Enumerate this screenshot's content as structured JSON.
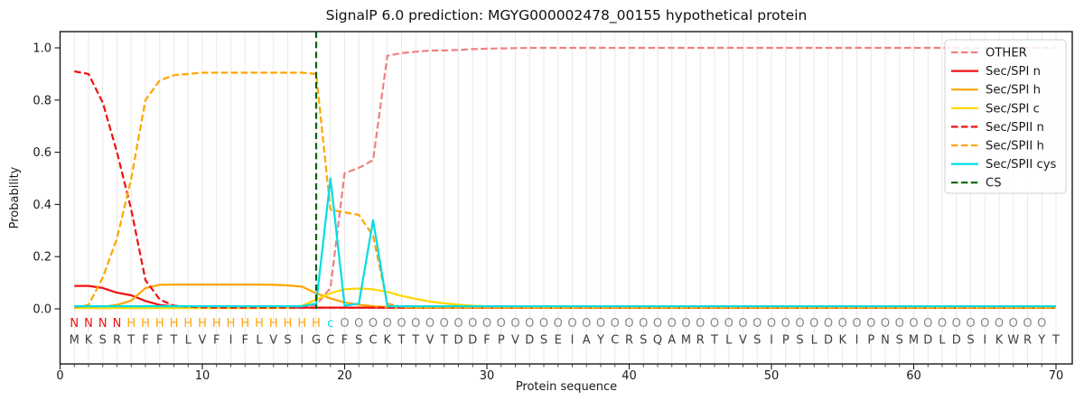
{
  "title": "SignalP 6.0 prediction: MGYG000002478_00155 hypothetical protein",
  "axes": {
    "xlabel": "Protein sequence",
    "ylabel": "Probability",
    "xticks": [
      0,
      10,
      20,
      30,
      40,
      50,
      60,
      70
    ],
    "ytick_labels": [
      "0.0",
      "0.2",
      "0.4",
      "0.6",
      "0.8",
      "1.0"
    ],
    "ytick_values": [
      0.0,
      0.2,
      0.4,
      0.6,
      0.8,
      1.0
    ]
  },
  "legend": {
    "entries": [
      "OTHER",
      "Sec/SPI n",
      "Sec/SPI h",
      "Sec/SPI c",
      "Sec/SPII n",
      "Sec/SPII h",
      "Sec/SPII cys",
      "CS"
    ],
    "position": "upper right"
  },
  "chart_data": {
    "type": "line",
    "x_start": 1,
    "x_end": 70,
    "xlim": [
      0,
      71.2
    ],
    "ylim": [
      -0.21,
      1.06
    ],
    "grid": "vertical gridline at every residue position",
    "sequence": "MKSRTFFTLVFIFLVSIGCFSCKTTVTDDFPVDSEIAYCRSQAMRTLVSIPSLDKIPNSMDLDSIKWRYT",
    "region_labels": "NNNNHHHHHHHHHHHHHHcOOOOOOOOOOOOOOOOOOOOOOOOOOOOOOOOOOOOOOOOOOOOOOOOOO",
    "region_colors": {
      "N": "#ee1111",
      "H": "#ffa500",
      "c": "#00dde5",
      "O": "#888888"
    },
    "sequence_letter_color": "#3d3d3d",
    "gridline_color": "#e9e9e9",
    "frame_color": "#1a1a1a",
    "series": [
      {
        "name": "OTHER",
        "color": "#f08080",
        "dashed": true,
        "values": [
          0.01,
          0.01,
          0.01,
          0.01,
          0.01,
          0.01,
          0.01,
          0.01,
          0.01,
          0.01,
          0.01,
          0.01,
          0.01,
          0.01,
          0.01,
          0.01,
          0.01,
          0.015,
          0.08,
          0.52,
          0.54,
          0.57,
          0.97,
          0.98,
          0.985,
          0.99,
          0.99,
          0.992,
          0.995,
          0.997,
          0.998,
          0.999,
          1.0,
          1.0,
          1.0,
          1.0,
          1.0,
          1.0,
          1.0,
          1.0,
          1.0,
          1.0,
          1.0,
          1.0,
          1.0,
          1.0,
          1.0,
          1.0,
          1.0,
          1.0,
          1.0,
          1.0,
          1.0,
          1.0,
          1.0,
          1.0,
          1.0,
          1.0,
          1.0,
          1.0,
          1.0,
          1.0,
          1.0,
          1.0,
          1.0,
          1.0,
          1.0,
          1.0,
          1.0,
          1.0
        ]
      },
      {
        "name": "Sec/SPI n",
        "color": "#ee1111",
        "dashed": false,
        "values": [
          0.088,
          0.088,
          0.08,
          0.062,
          0.052,
          0.03,
          0.015,
          0.009,
          0.007,
          0.006,
          0.005,
          0.005,
          0.005,
          0.005,
          0.005,
          0.005,
          0.005,
          0.005,
          0.005,
          0.005,
          0.005,
          0.005,
          0.005,
          0.005,
          0.005,
          0.005,
          0.005,
          0.005,
          0.005,
          0.005,
          0.005,
          0.005,
          0.005,
          0.005,
          0.005,
          0.005,
          0.005,
          0.005,
          0.005,
          0.005,
          0.005,
          0.005,
          0.005,
          0.005,
          0.005,
          0.005,
          0.005,
          0.005,
          0.005,
          0.005,
          0.005,
          0.005,
          0.005,
          0.005,
          0.005,
          0.005,
          0.005,
          0.005,
          0.005,
          0.005,
          0.005,
          0.005,
          0.005,
          0.005,
          0.005,
          0.005,
          0.005,
          0.005,
          0.005,
          0.005
        ]
      },
      {
        "name": "Sec/SPI h",
        "color": "#ffa500",
        "dashed": false,
        "values": [
          0.004,
          0.005,
          0.008,
          0.015,
          0.032,
          0.08,
          0.092,
          0.093,
          0.093,
          0.093,
          0.093,
          0.093,
          0.093,
          0.093,
          0.092,
          0.09,
          0.085,
          0.06,
          0.04,
          0.025,
          0.016,
          0.01,
          0.007,
          0.005,
          0.004,
          0.004,
          0.004,
          0.004,
          0.004,
          0.004,
          0.004,
          0.004,
          0.004,
          0.004,
          0.004,
          0.004,
          0.004,
          0.004,
          0.004,
          0.004,
          0.004,
          0.004,
          0.004,
          0.004,
          0.004,
          0.004,
          0.004,
          0.004,
          0.004,
          0.004,
          0.004,
          0.004,
          0.004,
          0.004,
          0.004,
          0.004,
          0.004,
          0.004,
          0.004,
          0.004,
          0.004,
          0.004,
          0.004,
          0.004,
          0.004,
          0.004,
          0.004,
          0.004,
          0.004,
          0.004
        ]
      },
      {
        "name": "Sec/SPI c",
        "color": "#ffd700",
        "dashed": false,
        "values": [
          0.003,
          0.003,
          0.003,
          0.003,
          0.003,
          0.003,
          0.003,
          0.003,
          0.003,
          0.003,
          0.003,
          0.003,
          0.003,
          0.003,
          0.003,
          0.005,
          0.012,
          0.035,
          0.06,
          0.075,
          0.078,
          0.075,
          0.065,
          0.05,
          0.038,
          0.028,
          0.021,
          0.016,
          0.012,
          0.01,
          0.009,
          0.008,
          0.007,
          0.007,
          0.006,
          0.005,
          0.005,
          0.005,
          0.005,
          0.005,
          0.005,
          0.005,
          0.005,
          0.005,
          0.005,
          0.005,
          0.005,
          0.005,
          0.005,
          0.005,
          0.005,
          0.005,
          0.005,
          0.005,
          0.005,
          0.005,
          0.005,
          0.005,
          0.005,
          0.005,
          0.005,
          0.005,
          0.005,
          0.005,
          0.005,
          0.005,
          0.005,
          0.005,
          0.005,
          0.005
        ]
      },
      {
        "name": "Sec/SPII n",
        "color": "#ee1111",
        "dashed": true,
        "values": [
          0.91,
          0.9,
          0.79,
          0.6,
          0.38,
          0.11,
          0.036,
          0.012,
          0.008,
          0.006,
          0.005,
          0.005,
          0.005,
          0.005,
          0.005,
          0.005,
          0.005,
          0.005,
          0.005,
          0.005,
          0.005,
          0.005,
          0.005,
          0.005,
          0.005,
          0.005,
          0.005,
          0.005,
          0.005,
          0.005,
          0.005,
          0.005,
          0.005,
          0.005,
          0.005,
          0.005,
          0.005,
          0.005,
          0.005,
          0.005,
          0.005,
          0.005,
          0.005,
          0.005,
          0.005,
          0.005,
          0.005,
          0.005,
          0.005,
          0.005,
          0.005,
          0.005,
          0.005,
          0.005,
          0.005,
          0.005,
          0.005,
          0.005,
          0.005,
          0.005,
          0.005,
          0.005,
          0.005,
          0.005,
          0.005,
          0.005,
          0.005,
          0.005,
          0.005,
          0.005
        ]
      },
      {
        "name": "Sec/SPII h",
        "color": "#ffa500",
        "dashed": true,
        "values": [
          0.004,
          0.015,
          0.12,
          0.27,
          0.5,
          0.8,
          0.875,
          0.895,
          0.9,
          0.905,
          0.905,
          0.905,
          0.905,
          0.905,
          0.905,
          0.905,
          0.905,
          0.9,
          0.38,
          0.37,
          0.36,
          0.28,
          0.02,
          0.008,
          0.005,
          0.005,
          0.005,
          0.005,
          0.005,
          0.005,
          0.005,
          0.005,
          0.005,
          0.005,
          0.005,
          0.005,
          0.005,
          0.005,
          0.005,
          0.005,
          0.005,
          0.005,
          0.005,
          0.005,
          0.005,
          0.005,
          0.005,
          0.005,
          0.005,
          0.005,
          0.005,
          0.005,
          0.005,
          0.005,
          0.005,
          0.005,
          0.005,
          0.005,
          0.005,
          0.005,
          0.005,
          0.005,
          0.005,
          0.005,
          0.005,
          0.005,
          0.005,
          0.005,
          0.005,
          0.005
        ]
      },
      {
        "name": "Sec/SPII cys",
        "color": "#00dde5",
        "dashed": false,
        "values": [
          0.01,
          0.01,
          0.01,
          0.01,
          0.01,
          0.01,
          0.01,
          0.01,
          0.01,
          0.01,
          0.01,
          0.01,
          0.01,
          0.01,
          0.01,
          0.01,
          0.01,
          0.02,
          0.5,
          0.012,
          0.02,
          0.34,
          0.01,
          0.01,
          0.01,
          0.01,
          0.01,
          0.01,
          0.01,
          0.01,
          0.01,
          0.01,
          0.01,
          0.01,
          0.01,
          0.01,
          0.01,
          0.01,
          0.01,
          0.01,
          0.01,
          0.01,
          0.01,
          0.01,
          0.01,
          0.01,
          0.01,
          0.01,
          0.01,
          0.01,
          0.01,
          0.01,
          0.01,
          0.01,
          0.01,
          0.01,
          0.01,
          0.01,
          0.01,
          0.01,
          0.01,
          0.01,
          0.01,
          0.01,
          0.01,
          0.01,
          0.01,
          0.01,
          0.01,
          0.01
        ]
      }
    ],
    "cs_marker": {
      "name": "CS",
      "color": "#006400",
      "dashed": true,
      "position": 18
    }
  }
}
